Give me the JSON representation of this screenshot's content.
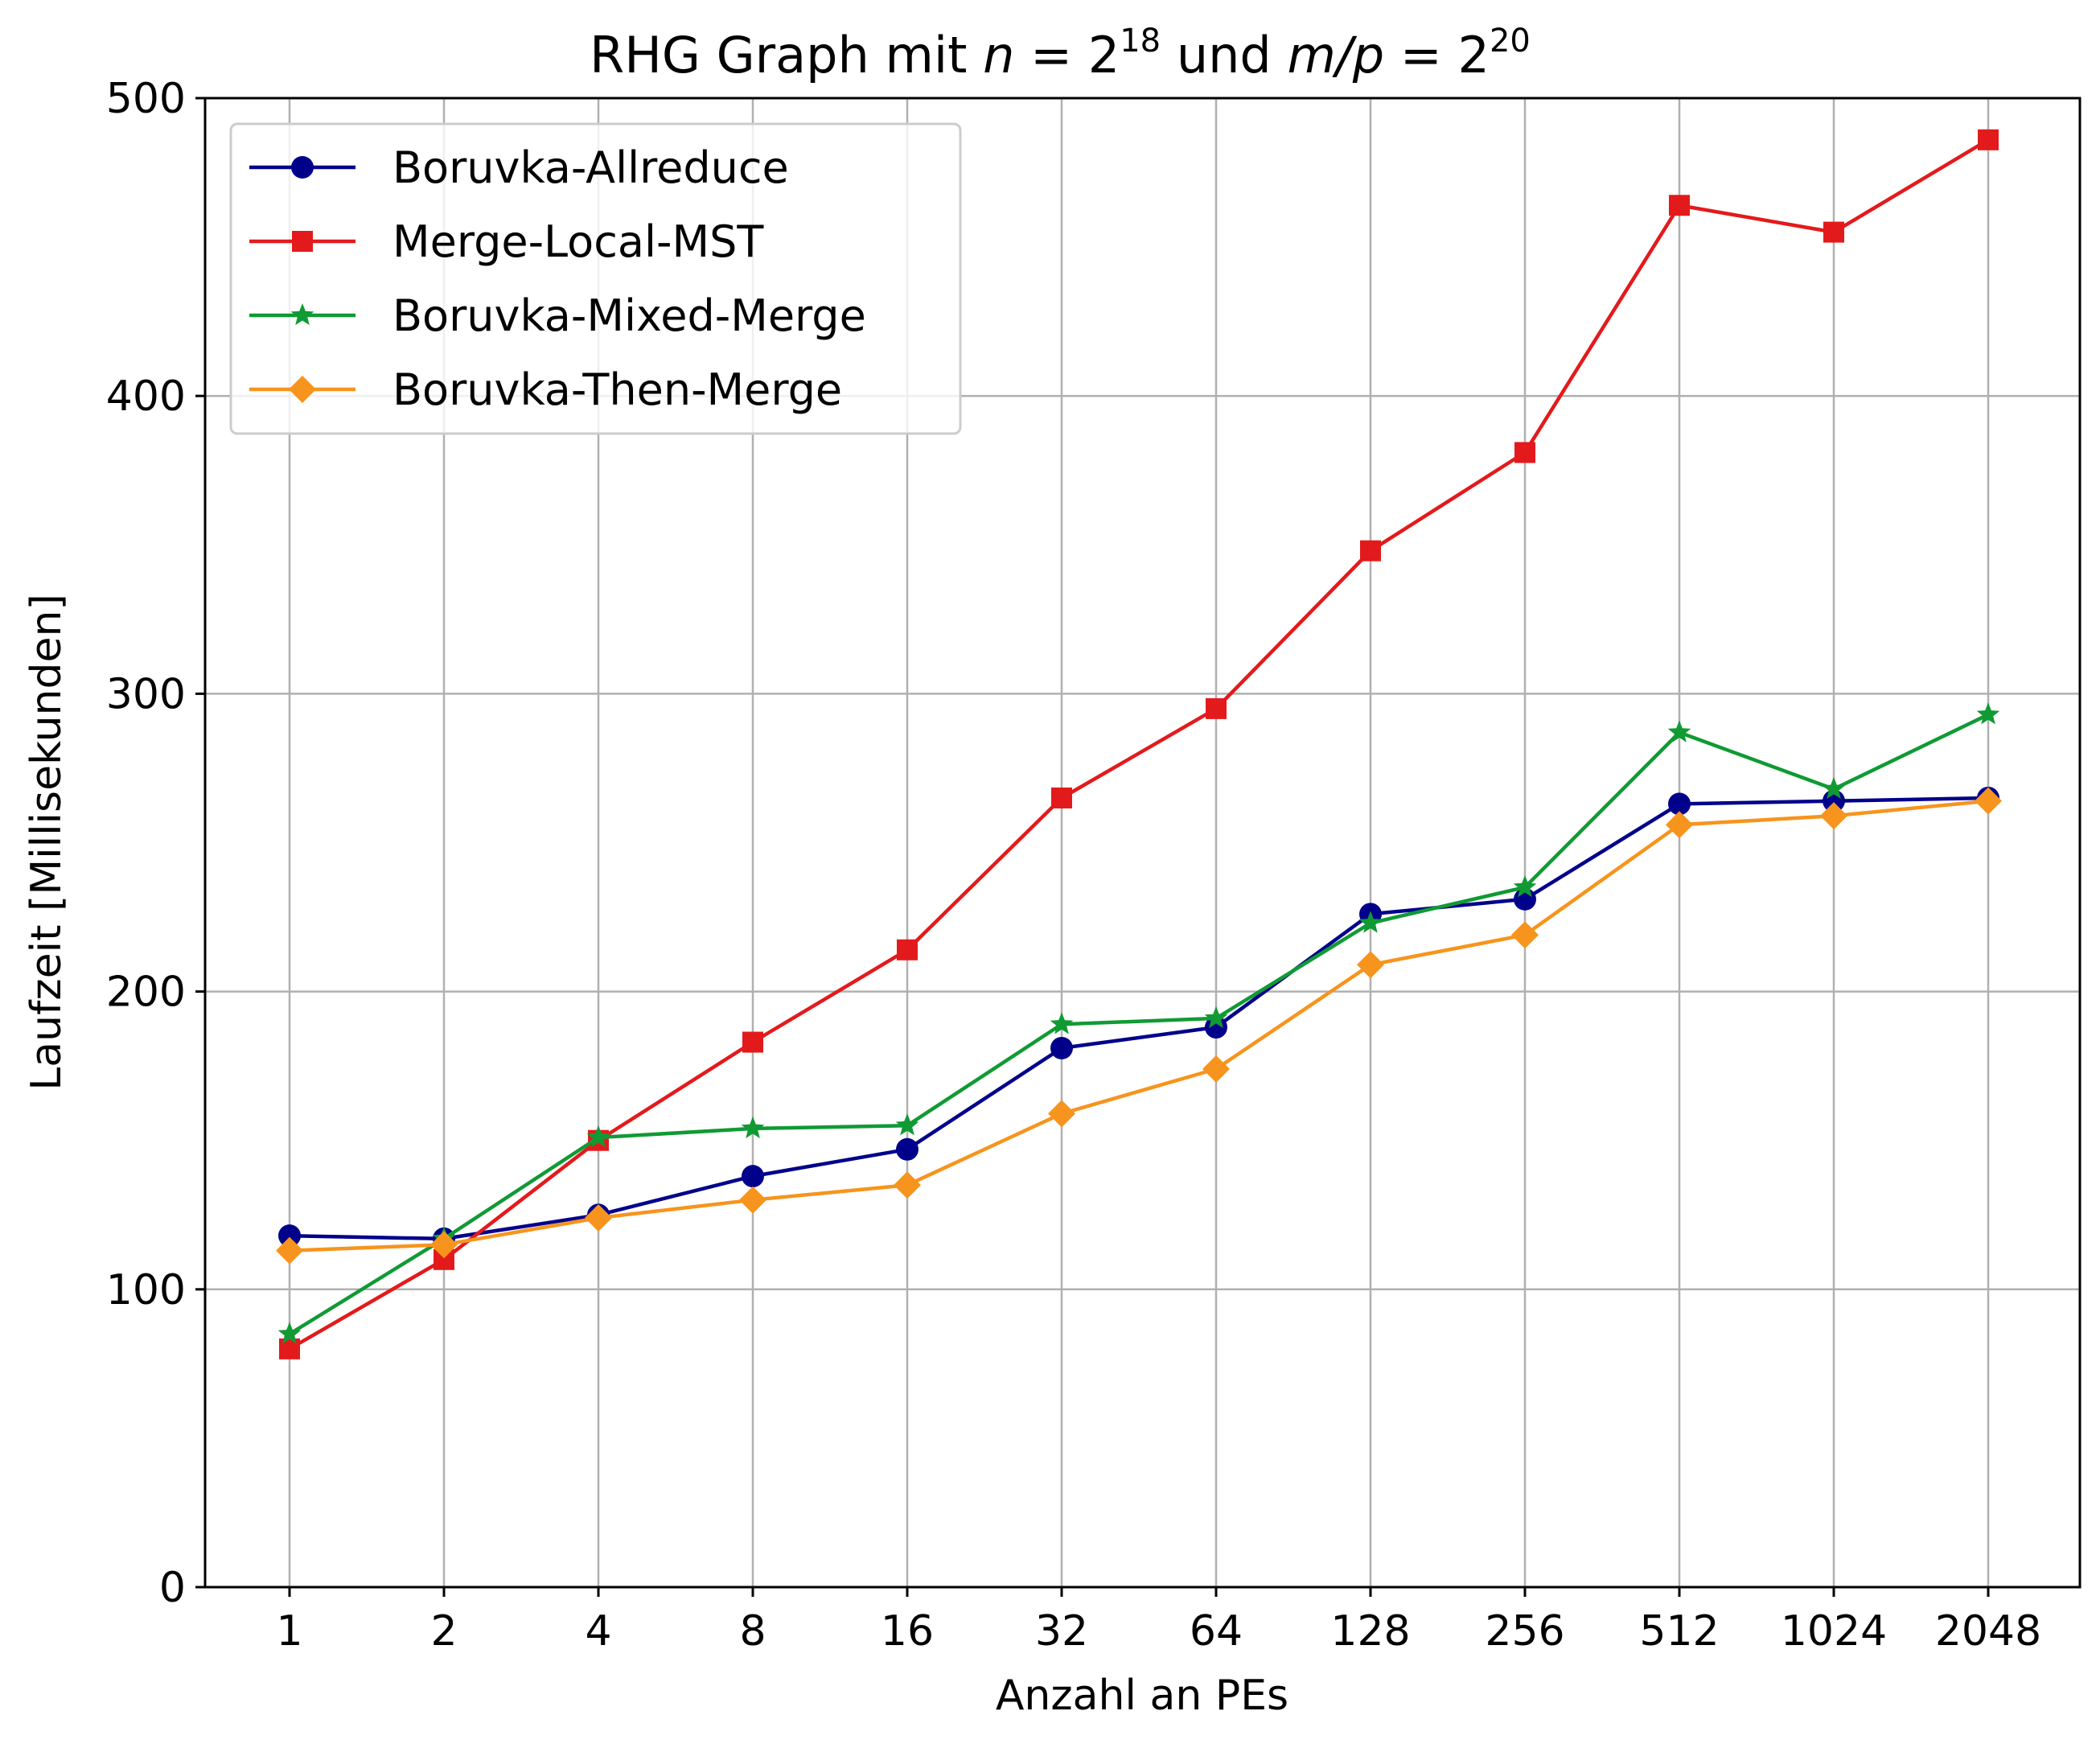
{
  "chart_data": {
    "type": "line",
    "title_parts": {
      "prefix": "RHG Graph mit ",
      "n_var": "n",
      "eq1": " = 2",
      "n_exp": "18",
      "mid": " und ",
      "mp_var": "m/p",
      "eq2": " = 2",
      "mp_exp": "20"
    },
    "xlabel": "Anzahl an PEs",
    "ylabel": "Laufzeit [Millisekunden]",
    "categories": [
      "1",
      "2",
      "4",
      "8",
      "16",
      "32",
      "64",
      "128",
      "256",
      "512",
      "1024",
      "2048"
    ],
    "ylim": [
      0,
      500
    ],
    "yticks": [
      "0",
      "100",
      "200",
      "300",
      "400",
      "500"
    ],
    "grid": true,
    "legend_position": "top-left",
    "series": [
      {
        "name": "Boruvka-Allreduce",
        "color": "#00008b",
        "marker": "circle",
        "values": [
          118,
          117,
          125,
          138,
          147,
          181,
          188,
          226,
          231,
          263,
          264,
          265
        ]
      },
      {
        "name": "Merge-Local-MST",
        "color": "#e31a1c",
        "marker": "square",
        "values": [
          80,
          110,
          150,
          183,
          214,
          265,
          295,
          348,
          381,
          464,
          455,
          486
        ]
      },
      {
        "name": "Boruvka-Mixed-Merge",
        "color": "#109a34",
        "marker": "star",
        "values": [
          85,
          117,
          151,
          154,
          155,
          189,
          191,
          223,
          235,
          287,
          268,
          293
        ]
      },
      {
        "name": "Boruvka-Then-Merge",
        "color": "#f7941d",
        "marker": "diamond",
        "values": [
          113,
          115,
          124,
          130,
          135,
          159,
          174,
          209,
          219,
          256,
          259,
          264
        ]
      }
    ]
  }
}
